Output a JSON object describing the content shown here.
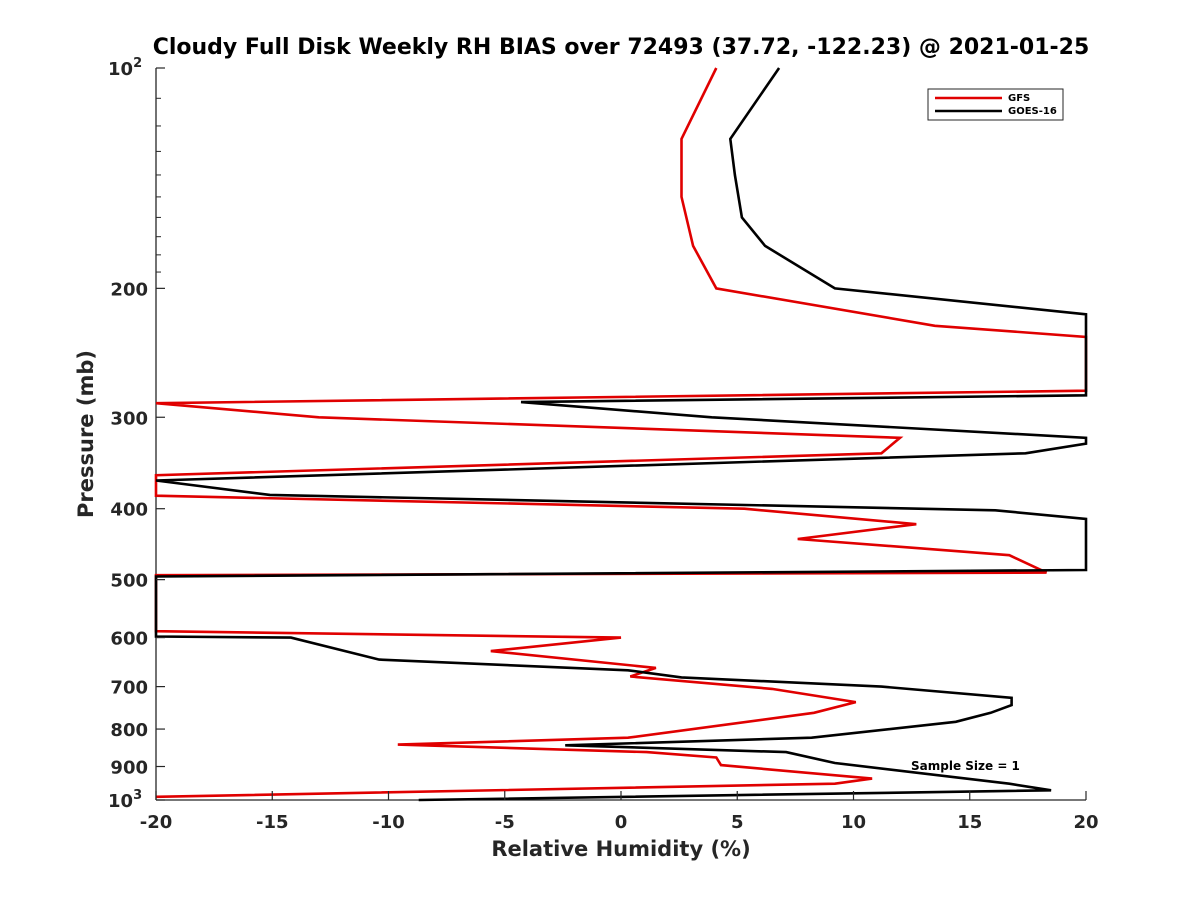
{
  "chart_data": {
    "type": "line",
    "title": "Cloudy Full Disk Weekly RH BIAS over 72493 (37.72, -122.23) @ 2021-01-25",
    "xlabel": "Relative Humidity (%)",
    "ylabel": "Pressure (mb)",
    "xlim": [
      -20,
      20
    ],
    "ylim": [
      100,
      1000
    ],
    "y_scale": "log",
    "y_reversed": true,
    "grid": false,
    "legend_position": "top-right",
    "x_ticks": [
      "-20",
      "-15",
      "-10",
      "-5",
      "0",
      "5",
      "10",
      "15",
      "20"
    ],
    "y_ticks": [
      {
        "value": 100,
        "base": "10",
        "sup": "2"
      },
      {
        "value": 200,
        "base": "200",
        "sup": ""
      },
      {
        "value": 300,
        "base": "300",
        "sup": ""
      },
      {
        "value": 400,
        "base": "400",
        "sup": ""
      },
      {
        "value": 500,
        "base": "500",
        "sup": ""
      },
      {
        "value": 600,
        "base": "600",
        "sup": ""
      },
      {
        "value": 700,
        "base": "700",
        "sup": ""
      },
      {
        "value": 800,
        "base": "800",
        "sup": ""
      },
      {
        "value": 900,
        "base": "900",
        "sup": ""
      },
      {
        "value": 1000,
        "base": "10",
        "sup": "3"
      }
    ],
    "annotation": "Sample Size = 1",
    "series": [
      {
        "name": "GFS",
        "color": "#e00000",
        "points": [
          [
            4.1,
            100
          ],
          [
            2.6,
            125
          ],
          [
            2.6,
            150
          ],
          [
            3.1,
            175
          ],
          [
            4.1,
            200
          ],
          [
            13.5,
            225
          ],
          [
            20,
            233
          ],
          [
            20,
            276
          ],
          [
            -20,
            287
          ],
          [
            -13,
            300
          ],
          [
            12.0,
            320
          ],
          [
            11.2,
            336
          ],
          [
            -20,
            360
          ],
          [
            -20,
            384
          ],
          [
            5.3,
            400
          ],
          [
            12.7,
            420
          ],
          [
            7.6,
            440
          ],
          [
            16.7,
            463
          ],
          [
            18.3,
            489
          ],
          [
            -20,
            493
          ],
          [
            -20,
            588
          ],
          [
            0,
            600
          ],
          [
            -5.6,
            626
          ],
          [
            1.5,
            660
          ],
          [
            0.4,
            678
          ],
          [
            6.5,
            705
          ],
          [
            10.1,
            735
          ],
          [
            8.3,
            760
          ],
          [
            0.3,
            822
          ],
          [
            -9.6,
            840
          ],
          [
            1.1,
            860
          ],
          [
            4.1,
            875
          ],
          [
            4.3,
            896
          ],
          [
            10.8,
            935
          ],
          [
            9.2,
            950
          ],
          [
            -20,
            990
          ]
        ]
      },
      {
        "name": "GOES-16",
        "color": "#000000",
        "points": [
          [
            6.8,
            100
          ],
          [
            4.7,
            125
          ],
          [
            4.9,
            140
          ],
          [
            5.2,
            160
          ],
          [
            6.2,
            175
          ],
          [
            9.2,
            200
          ],
          [
            20,
            217
          ],
          [
            20,
            280
          ],
          [
            -4.3,
            286
          ],
          [
            3.9,
            300
          ],
          [
            20,
            320
          ],
          [
            20,
            326
          ],
          [
            17.4,
            336
          ],
          [
            -20,
            366
          ],
          [
            -15.1,
            383
          ],
          [
            16.1,
            402
          ],
          [
            20,
            413
          ],
          [
            20,
            485
          ],
          [
            -20,
            495
          ],
          [
            -20,
            598
          ],
          [
            -14.2,
            600
          ],
          [
            -10.4,
            643
          ],
          [
            0.3,
            665
          ],
          [
            2.6,
            680
          ],
          [
            11.2,
            700
          ],
          [
            16.8,
            725
          ],
          [
            16.8,
            742
          ],
          [
            15.9,
            760
          ],
          [
            14.4,
            782
          ],
          [
            8.2,
            822
          ],
          [
            -2.4,
            842
          ],
          [
            7.1,
            860
          ],
          [
            9.2,
            890
          ],
          [
            16.7,
            950
          ],
          [
            18.5,
            970
          ],
          [
            -8.7,
            1000
          ]
        ]
      }
    ]
  }
}
